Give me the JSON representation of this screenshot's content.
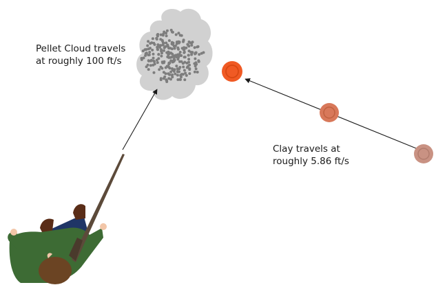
{
  "pellet_label": {
    "line1": "Pellet Cloud travels",
    "line2": "at roughly 100 ft/s"
  },
  "clay_label": {
    "line1": "Clay travels at",
    "line2": "roughly 5.86 ft/s"
  },
  "colors": {
    "cloud": "#d1d1d1",
    "pellet": "#7d7d7d",
    "clay_current": "#f05a24",
    "clay_mid": "#d8785a",
    "clay_start": "#c99283",
    "jacket": "#3d6b34",
    "jeans": "#1f3566",
    "hair": "#6b4423",
    "skin": "#f2c6a8",
    "boots": "#5a2d18",
    "gun": "#5c4a3a"
  },
  "icons": [
    "shooter-figure",
    "shotgun",
    "pellet-cloud",
    "clay-target"
  ]
}
